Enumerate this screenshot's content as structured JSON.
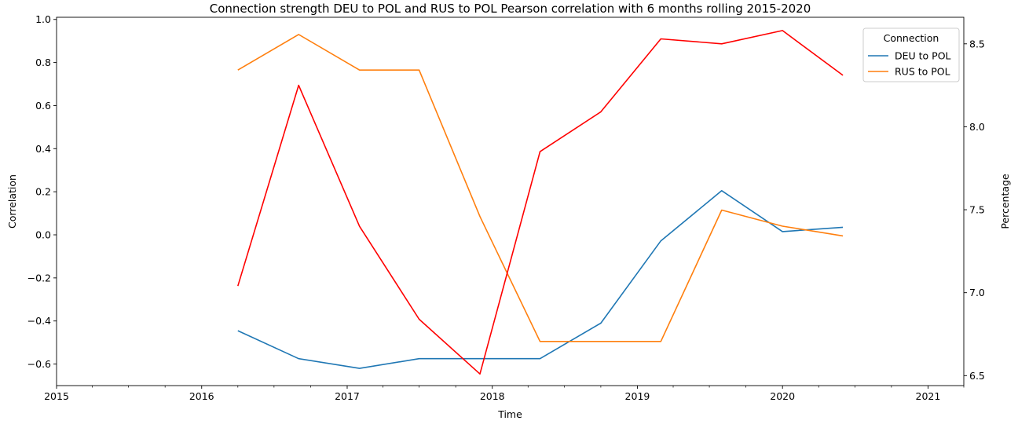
{
  "chart_data": {
    "type": "line",
    "title": "Connection strength DEU to POL and RUS to POL Pearson correlation with 6 months rolling 2015-2020",
    "xlabel": "Time",
    "ylabel_left": "Correlation",
    "ylabel_right": "Percentage",
    "x_ticks": [
      "2015",
      "2016",
      "2017",
      "2018",
      "2019",
      "2020",
      "2021"
    ],
    "xlim": [
      "2015-01-01",
      "2021-04-01"
    ],
    "ylim_left": [
      -0.7,
      1.01
    ],
    "yticks_left": [
      "−0.6",
      "−0.4",
      "−0.2",
      "0.0",
      "0.2",
      "0.4",
      "0.6",
      "0.8",
      "1.0"
    ],
    "ylim_right": [
      6.44,
      8.66
    ],
    "yticks_right": [
      "6.5",
      "7.0",
      "7.5",
      "8.0",
      "8.5"
    ],
    "x": [
      "2016-04-01",
      "2016-09-01",
      "2017-02-01",
      "2017-07-01",
      "2017-12-01",
      "2018-05-01",
      "2018-10-01",
      "2019-03-01",
      "2019-08-01",
      "2020-01-01",
      "2020-06-01"
    ],
    "series": [
      {
        "name": "DEU to POL",
        "axis": "left",
        "color": "#1f77b4",
        "values": [
          -0.445,
          -0.575,
          -0.62,
          -0.575,
          -0.575,
          -0.575,
          -0.41,
          -0.028,
          0.205,
          0.015,
          0.035
        ]
      },
      {
        "name": "RUS to POL",
        "axis": "left",
        "color": "#ff7f0e",
        "values": [
          0.765,
          0.93,
          0.765,
          0.765,
          0.085,
          -0.495,
          -0.495,
          -0.495,
          0.115,
          0.04,
          -0.005
        ]
      },
      {
        "name": "",
        "axis": "right",
        "color": "#ff0000",
        "values": [
          7.04,
          8.25,
          7.4,
          6.84,
          6.51,
          7.85,
          8.09,
          8.53,
          8.5,
          8.58,
          8.31
        ]
      }
    ],
    "legend": {
      "title": "Connection",
      "placement": "upper right"
    },
    "grid": false
  }
}
